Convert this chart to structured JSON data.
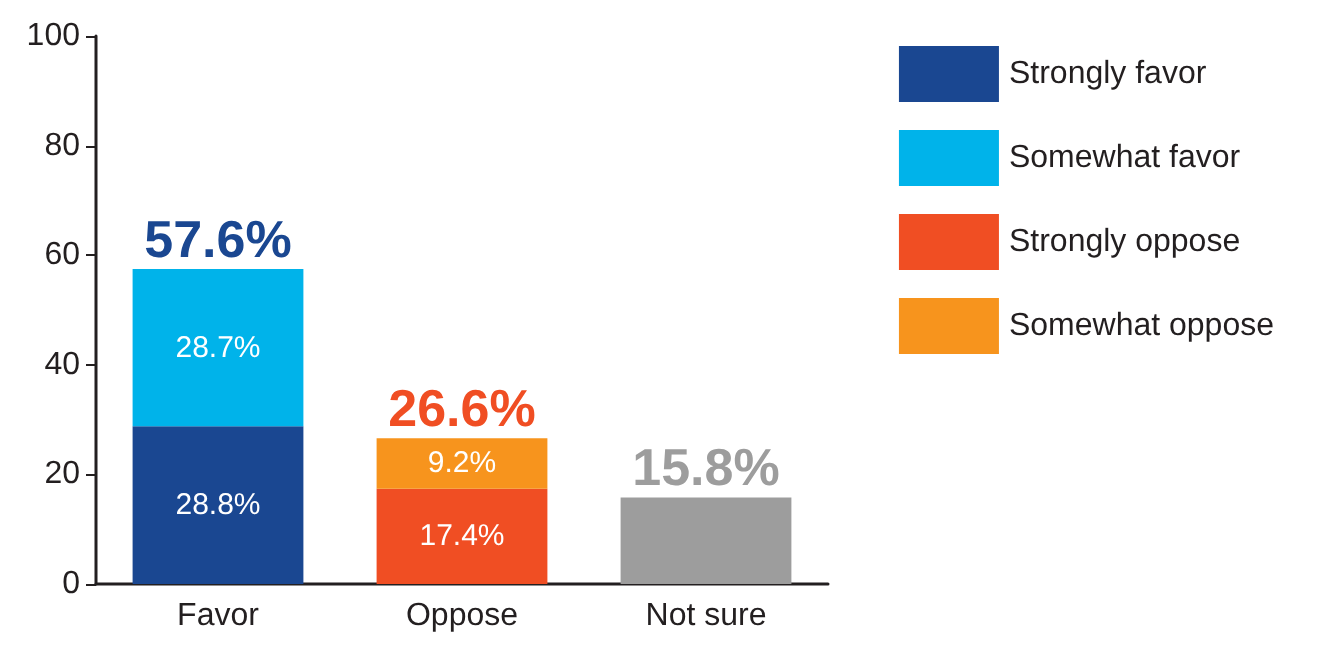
{
  "chart_data": {
    "type": "bar",
    "stacked": true,
    "categories": [
      "Favor",
      "Oppose",
      "Not sure"
    ],
    "series": [
      {
        "name": "Strongly favor",
        "color": "#1a4791",
        "values": [
          28.8,
          null,
          null
        ],
        "value_labels": [
          "28.8%",
          null,
          null
        ]
      },
      {
        "name": "Somewhat favor",
        "color": "#00b3ea",
        "values": [
          28.7,
          null,
          null
        ],
        "value_labels": [
          "28.7%",
          null,
          null
        ]
      },
      {
        "name": "Strongly oppose",
        "color": "#f04e23",
        "values": [
          null,
          17.4,
          null
        ],
        "value_labels": [
          null,
          "17.4%",
          null
        ]
      },
      {
        "name": "Somewhat oppose",
        "color": "#f7941d",
        "values": [
          null,
          9.2,
          null
        ],
        "value_labels": [
          null,
          "9.2%",
          null
        ]
      },
      {
        "color": "#9d9d9d",
        "values": [
          null,
          null,
          15.8
        ]
      }
    ],
    "totals": [
      "57.6%",
      "26.6%",
      "15.8%"
    ],
    "ylim": [
      0,
      100
    ],
    "yticks": [
      0,
      20,
      40,
      60,
      80,
      100
    ],
    "grid": false,
    "legend": "right"
  }
}
